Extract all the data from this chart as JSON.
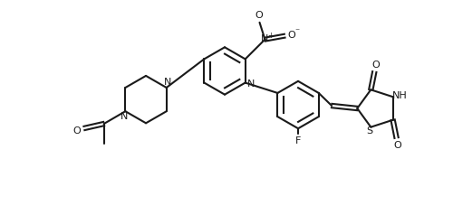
{
  "bg_color": "#ffffff",
  "line_color": "#1a1a1a",
  "line_width": 1.5,
  "font_size": 8,
  "figsize": [
    5.0,
    2.38
  ],
  "dpi": 100,
  "xlim": [
    0,
    5.0
  ],
  "ylim": [
    0,
    2.38
  ]
}
